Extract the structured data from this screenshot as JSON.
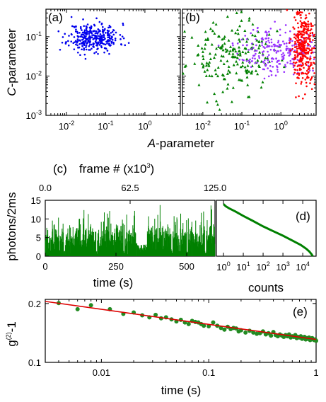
{
  "chart_data": [
    {
      "panel": "(a)",
      "type": "scatter",
      "xlabel": "A-parameter",
      "ylabel": "C-parameter",
      "xscale": "log",
      "yscale": "log",
      "xlim": [
        0.003,
        8
      ],
      "ylim": [
        0.001,
        0.5
      ],
      "x_ticks": [
        {
          "base": "10",
          "exp": "-2"
        },
        {
          "base": "10",
          "exp": "-1"
        },
        {
          "base": "10",
          "exp": "0"
        }
      ],
      "y_ticks": [
        {
          "base": "10",
          "exp": "-1"
        },
        {
          "base": "10",
          "exp": "-2"
        },
        {
          "base": "10",
          "exp": "-3"
        }
      ],
      "series": [
        {
          "color": "#0000ee",
          "marker": "dot",
          "cloud": {
            "x_center": 0.05,
            "x_log_spread": 0.32,
            "y_center": 0.095,
            "y_log_spread": 0.18,
            "count": 330,
            "seed": 11
          }
        }
      ],
      "grid": false
    },
    {
      "panel": "(b)",
      "type": "scatter",
      "xlabel": "A-parameter",
      "xscale": "log",
      "yscale": "log",
      "xlim": [
        0.003,
        8
      ],
      "ylim": [
        0.001,
        0.5
      ],
      "x_ticks": [
        {
          "base": "10",
          "exp": "-2"
        },
        {
          "base": "10",
          "exp": "-1"
        },
        {
          "base": "10",
          "exp": "0"
        }
      ],
      "series": [
        {
          "color": "#008000",
          "marker": "triangle",
          "cloud": {
            "x_center": 0.05,
            "x_log_spread": 0.55,
            "y_center": 0.03,
            "y_log_spread": 0.45,
            "count": 200,
            "seed": 23
          }
        },
        {
          "color": "#9933ff",
          "marker": "dot",
          "cloud": {
            "x_center": 0.9,
            "x_log_spread": 0.5,
            "y_center": 0.045,
            "y_log_spread": 0.3,
            "count": 250,
            "seed": 37
          }
        },
        {
          "color": "#ff0000",
          "marker": "dot",
          "cloud": {
            "x_center": 3.8,
            "x_log_spread": 0.14,
            "y_center": 0.05,
            "y_log_spread": 0.5,
            "count": 330,
            "seed": 51
          }
        }
      ],
      "grid": false
    },
    {
      "panel": "(c)",
      "type": "bar",
      "xlabel": "time (s)",
      "ylabel": "photons/2ms",
      "top_xlabel": "frame # (x10³)",
      "top_xlabel_parts": {
        "prefix": "frame # (x10",
        "sup": "3",
        "suffix": ")"
      },
      "xlim": [
        0,
        600
      ],
      "ylim": [
        0,
        15
      ],
      "x_ticks": [
        "0",
        "250",
        "500"
      ],
      "x_tick_values": [
        0,
        250,
        500
      ],
      "top_x_ticks": [
        "0.0",
        "62.5",
        "125.0"
      ],
      "top_x_tick_values": [
        0,
        300,
        600
      ],
      "y_ticks": [
        "0",
        "5",
        "10",
        "15"
      ],
      "y_tick_values": [
        0,
        5,
        10,
        15
      ],
      "color": "#008000",
      "segments": [
        {
          "t_start": 0,
          "t_end": 325,
          "level": "on",
          "mean": 4.6
        },
        {
          "t_start": 325,
          "t_end": 360,
          "level": "off",
          "mean": 1.5
        },
        {
          "t_start": 360,
          "t_end": 600,
          "level": "on",
          "mean": 4.6
        }
      ],
      "dips": [
        68,
        182,
        278,
        448,
        502,
        567
      ],
      "grid": false
    },
    {
      "panel": "(d)",
      "type": "line",
      "xlabel": "counts",
      "xscale": "log",
      "xlim": [
        1,
        40000
      ],
      "ylim": [
        0,
        15
      ],
      "x_ticks": [
        {
          "base": "10",
          "exp": "0"
        },
        {
          "base": "10",
          "exp": "1"
        },
        {
          "base": "10",
          "exp": "2"
        },
        {
          "base": "10",
          "exp": "3"
        },
        {
          "base": "10",
          "exp": "4"
        }
      ],
      "color": "#008000",
      "series": [
        {
          "x": [
            1,
            1.3,
            2,
            4,
            10,
            30,
            100,
            300,
            1000,
            3000,
            8000,
            15000,
            22000,
            28000,
            32000
          ],
          "y": [
            14,
            13.4,
            12.8,
            12,
            10.8,
            9.5,
            8,
            6.8,
            5.5,
            4.2,
            3,
            2,
            1.2,
            0.5,
            0
          ]
        }
      ],
      "grid": false
    },
    {
      "panel": "(e)",
      "type": "scatter",
      "xlabel": "time (s)",
      "ylabel": "g⁽²⁾-1",
      "ylabel_parts": {
        "base": "g",
        "sup": "(2)",
        "suffix": "-1"
      },
      "xscale": "log",
      "yscale": "log",
      "xlim": [
        0.003,
        1
      ],
      "ylim": [
        0.1,
        0.21
      ],
      "x_ticks": [
        "0.01",
        "0.1",
        "1"
      ],
      "x_tick_values": [
        0.01,
        0.1,
        1
      ],
      "y_ticks": [
        "0.2",
        "0.1"
      ],
      "y_tick_values": [
        0.2,
        0.1
      ],
      "points_color": "#228b22",
      "fit_color": "#dd0000",
      "fit": {
        "x": [
          0.003,
          1
        ],
        "y": [
          0.205,
          0.131
        ]
      },
      "points": {
        "x": [
          0.004,
          0.006,
          0.008,
          0.012,
          0.016,
          0.02,
          0.024,
          0.028,
          0.032,
          0.036,
          0.04,
          0.045,
          0.05,
          0.055,
          0.06,
          0.065,
          0.07,
          0.075,
          0.08,
          0.085,
          0.09,
          0.1,
          0.11,
          0.12,
          0.13,
          0.14,
          0.15,
          0.16,
          0.17,
          0.18,
          0.19,
          0.2,
          0.22,
          0.24,
          0.26,
          0.28,
          0.3,
          0.32,
          0.34,
          0.36,
          0.38,
          0.4,
          0.42,
          0.44,
          0.46,
          0.48,
          0.5,
          0.52,
          0.54,
          0.56,
          0.58,
          0.6,
          0.62,
          0.64,
          0.66,
          0.68,
          0.7,
          0.72,
          0.74,
          0.76,
          0.78,
          0.8,
          0.82,
          0.84,
          0.86,
          0.88,
          0.9,
          0.92,
          0.94,
          0.96,
          0.98,
          1.0
        ],
        "y": [
          0.201,
          0.187,
          0.196,
          0.187,
          0.177,
          0.18,
          0.174,
          0.17,
          0.175,
          0.168,
          0.17,
          0.166,
          0.162,
          0.165,
          0.16,
          0.157,
          0.163,
          0.161,
          0.16,
          0.157,
          0.154,
          0.153,
          0.16,
          0.154,
          0.15,
          0.147,
          0.152,
          0.148,
          0.15,
          0.149,
          0.144,
          0.146,
          0.142,
          0.145,
          0.142,
          0.14,
          0.141,
          0.144,
          0.139,
          0.141,
          0.137,
          0.143,
          0.138,
          0.136,
          0.139,
          0.137,
          0.135,
          0.138,
          0.136,
          0.139,
          0.134,
          0.136,
          0.135,
          0.138,
          0.133,
          0.135,
          0.134,
          0.136,
          0.132,
          0.134,
          0.135,
          0.131,
          0.133,
          0.132,
          0.134,
          0.13,
          0.132,
          0.133,
          0.131,
          0.13,
          0.131,
          0.129
        ]
      },
      "grid": false
    }
  ]
}
